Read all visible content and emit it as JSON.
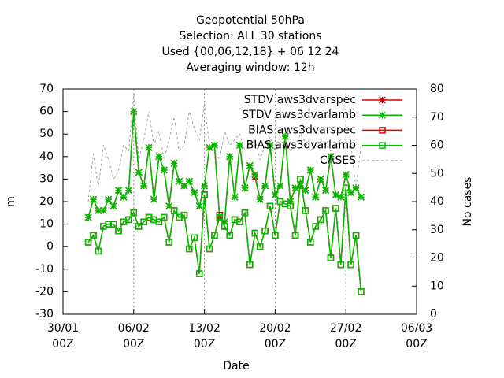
{
  "chart_data": {
    "type": "line",
    "title": [
      "Geopotential 50hPa",
      "Selection: ALL      30 stations",
      "Used {00,06,12,18} + 06 12 24",
      "Averaging window: 12h"
    ],
    "xlabel": "Date",
    "ylabel": "m",
    "y2label": "No cases",
    "xlim": [
      "30/01 00Z",
      "06/03 00Z"
    ],
    "xticks": [
      "30/01 00Z",
      "06/02 00Z",
      "13/02 00Z",
      "20/02 00Z",
      "27/02 00Z",
      "06/03 00Z"
    ],
    "ylim": [
      -30,
      70
    ],
    "yticks": [
      -30,
      -20,
      -10,
      0,
      10,
      20,
      30,
      40,
      50,
      60,
      70
    ],
    "y2lim": [
      0,
      80
    ],
    "y2ticks": [
      0,
      10,
      20,
      30,
      40,
      50,
      60,
      70,
      80
    ],
    "grid": "x",
    "legend": "top-right",
    "x": [
      "01/02 12Z",
      "02/02 00Z",
      "02/02 12Z",
      "03/02 00Z",
      "03/02 12Z",
      "04/02 00Z",
      "04/02 12Z",
      "05/02 00Z",
      "05/02 12Z",
      "06/02 00Z",
      "06/02 12Z",
      "07/02 00Z",
      "07/02 12Z",
      "08/02 00Z",
      "08/02 12Z",
      "09/02 00Z",
      "09/02 12Z",
      "10/02 00Z",
      "10/02 12Z",
      "11/02 00Z",
      "11/02 12Z",
      "12/02 00Z",
      "12/02 12Z",
      "13/02 00Z",
      "13/02 12Z",
      "14/02 00Z",
      "14/02 12Z",
      "15/02 00Z",
      "15/02 12Z",
      "16/02 00Z",
      "16/02 12Z",
      "17/02 00Z",
      "17/02 12Z",
      "18/02 00Z",
      "18/02 12Z",
      "19/02 00Z",
      "19/02 12Z",
      "20/02 00Z",
      "20/02 12Z",
      "21/02 00Z",
      "21/02 12Z",
      "22/02 00Z",
      "22/02 12Z",
      "23/02 00Z",
      "23/02 12Z",
      "24/02 00Z",
      "24/02 12Z",
      "25/02 00Z",
      "25/02 12Z",
      "26/02 00Z",
      "26/02 12Z",
      "27/02 00Z",
      "27/02 12Z",
      "28/02 00Z",
      "28/02 12Z"
    ],
    "series": [
      {
        "name": "STDV aws3dvarspec",
        "color": "#dd0000",
        "marker": "star",
        "values": [
          13,
          21,
          16,
          16,
          21,
          18,
          25,
          22,
          25,
          60,
          33,
          27,
          44,
          21,
          40,
          34,
          18,
          37,
          29,
          27,
          29,
          24,
          18,
          27,
          44,
          45,
          13,
          11,
          40,
          22,
          45,
          26,
          36,
          31,
          21,
          27,
          45,
          23,
          27,
          49,
          20,
          26,
          27,
          25,
          34,
          22,
          30,
          25,
          40,
          23,
          22,
          32,
          24,
          26,
          22
        ]
      },
      {
        "name": "STDV aws3dvarlamb",
        "color": "#00bb00",
        "marker": "star",
        "values": [
          13,
          21,
          16,
          16,
          21,
          18,
          25,
          22,
          25,
          60,
          33,
          27,
          44,
          21,
          40,
          34,
          18,
          37,
          29,
          27,
          29,
          24,
          18,
          27,
          44,
          45,
          13,
          11,
          40,
          22,
          45,
          26,
          36,
          32,
          21,
          27,
          45,
          23,
          27,
          49,
          20,
          26,
          27,
          25,
          34,
          22,
          30,
          25,
          40,
          23,
          22,
          32,
          24,
          26,
          22
        ]
      },
      {
        "name": "BIAS aws3dvarspec",
        "color": "#dd0000",
        "marker": "square",
        "values": [
          2,
          5,
          -2,
          9,
          10,
          10,
          7,
          11,
          12,
          15,
          9,
          11,
          13,
          12,
          11,
          13,
          2,
          16,
          13,
          14,
          -1,
          4,
          -12,
          23,
          -1,
          5,
          14,
          9,
          5,
          12,
          11,
          15,
          -8,
          6,
          0,
          7,
          18,
          5,
          20,
          19,
          18,
          5,
          30,
          16,
          2,
          9,
          12,
          16,
          -5,
          17,
          -8,
          26,
          -8,
          5,
          -20
        ]
      },
      {
        "name": "BIAS aws3dvarlamb",
        "color": "#00bb00",
        "marker": "square",
        "values": [
          2,
          5,
          -2,
          9,
          10,
          10,
          7,
          11,
          12,
          15,
          9,
          11,
          13,
          12,
          11,
          13,
          2,
          16,
          13,
          14,
          -1,
          4,
          -12,
          23,
          -1,
          5,
          13,
          9,
          5,
          12,
          11,
          15,
          -8,
          6,
          0,
          7,
          18,
          5,
          20,
          19,
          18,
          5,
          30,
          16,
          2,
          9,
          12,
          16,
          -5,
          17,
          -8,
          26,
          -8,
          5,
          -20
        ]
      },
      {
        "name": "CASES",
        "color": "#a0a0a0",
        "axis": "y2",
        "dashed": true,
        "values": [
          40,
          57,
          45,
          60,
          55,
          48,
          51,
          60,
          58,
          78,
          55,
          62,
          72,
          60,
          65,
          55,
          62,
          70,
          58,
          60,
          72,
          66,
          62,
          75,
          60,
          58,
          55,
          65,
          60,
          62,
          64,
          58,
          60,
          62,
          55,
          60,
          63,
          58,
          60,
          62,
          58,
          60,
          64,
          61,
          58,
          60,
          62,
          60,
          58,
          60,
          62,
          58,
          60,
          45,
          60
        ]
      }
    ]
  }
}
